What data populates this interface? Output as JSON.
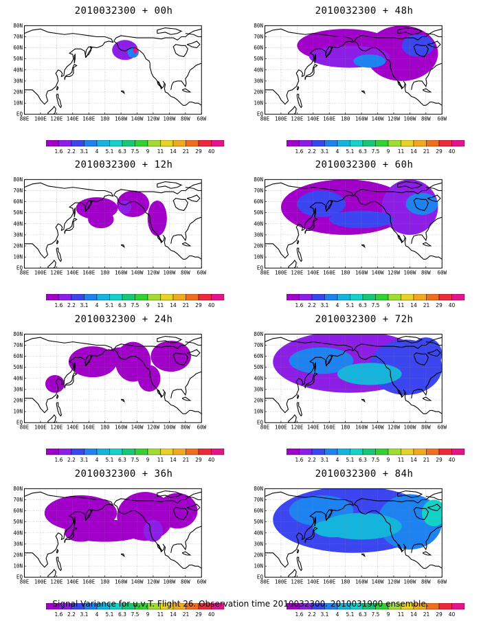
{
  "panels": [
    {
      "title": "2010032300 + 00h",
      "lead": "00h",
      "level": 0
    },
    {
      "title": "2010032300 + 12h",
      "lead": "12h",
      "level": 1
    },
    {
      "title": "2010032300 + 24h",
      "lead": "24h",
      "level": 2
    },
    {
      "title": "2010032300 + 36h",
      "lead": "36h",
      "level": 3
    },
    {
      "title": "2010032300 + 48h",
      "lead": "48h",
      "level": 4
    },
    {
      "title": "2010032300 + 60h",
      "lead": "60h",
      "level": 5
    },
    {
      "title": "2010032300 + 72h",
      "lead": "72h",
      "level": 6
    },
    {
      "title": "2010032300 + 84h",
      "lead": "84h",
      "level": 7
    }
  ],
  "axes": {
    "x_ticks": [
      "80E",
      "100E",
      "120E",
      "140E",
      "160E",
      "180",
      "160W",
      "140W",
      "120W",
      "100W",
      "80W",
      "60W"
    ],
    "y_ticks": [
      "EQ",
      "10N",
      "20N",
      "30N",
      "40N",
      "50N",
      "60N",
      "70N",
      "80N"
    ]
  },
  "colorbar": {
    "labels": [
      "1.6",
      "2.2",
      "3.1",
      "4",
      "5.1",
      "6.3",
      "7.5",
      "9",
      "11",
      "14",
      "21",
      "29",
      "40"
    ],
    "colors": [
      "#a000c8",
      "#8c1ee6",
      "#3c46f0",
      "#1e82f0",
      "#14b4dc",
      "#14d2c8",
      "#14c878",
      "#32d232",
      "#a0dc32",
      "#e6d228",
      "#f0aa1e",
      "#f06e1e",
      "#f0283c",
      "#e6148c"
    ]
  },
  "footer": "Signal Variance for u,v,T. Flight 26. Observation time 2010032300. 2010031900 ensemble."
}
